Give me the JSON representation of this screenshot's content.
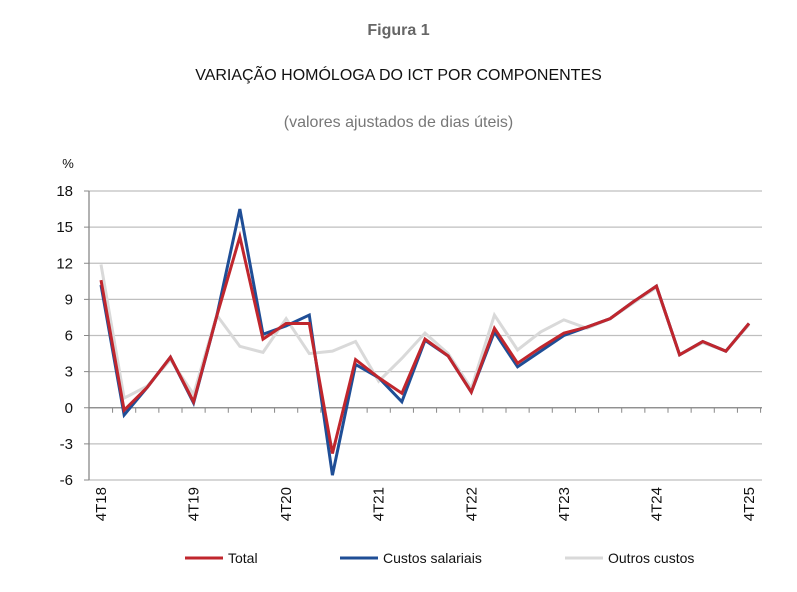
{
  "figure_label": "Figura 1",
  "chart_data": {
    "type": "line",
    "title": "VARIAÇÃO HOMÓLOGA DO ICT POR COMPONENTES",
    "subtitle": "(valores ajustados de dias úteis)",
    "ylabel": "%",
    "xlabel": "",
    "ylim": [
      -6,
      18
    ],
    "yticks": [
      18,
      15,
      12,
      9,
      6,
      3,
      0,
      -3,
      -6
    ],
    "grid": true,
    "legend_position": "bottom",
    "x": [
      "4T18",
      "1T19",
      "2T19",
      "3T19",
      "4T19",
      "1T20",
      "2T20",
      "3T20",
      "4T20",
      "1T21",
      "2T21",
      "3T21",
      "4T21",
      "1T22",
      "2T22",
      "3T22",
      "4T22",
      "1T23",
      "2T23",
      "3T23",
      "4T23",
      "1T24",
      "2T24",
      "3T24",
      "4T24",
      "1T25",
      "2T25",
      "3T25",
      "4T25"
    ],
    "xtick_labels": [
      "4T18",
      "4T19",
      "4T20",
      "4T21",
      "4T22",
      "4T23",
      "4T24",
      "4T25"
    ],
    "series": [
      {
        "name": "Total",
        "color": "#C0262D",
        "values": [
          10.6,
          -0.2,
          1.7,
          4.2,
          0.5,
          7.6,
          14.2,
          5.7,
          7.0,
          7.0,
          -3.8,
          4.0,
          2.5,
          1.2,
          5.7,
          4.3,
          1.3,
          6.6,
          3.7,
          5.0,
          6.2,
          6.7,
          7.4,
          8.8,
          10.1,
          4.4,
          5.5,
          4.7,
          7.0
        ]
      },
      {
        "name": "Custos salariais",
        "color": "#1F4E96",
        "values": [
          10.2,
          -0.6,
          1.7,
          4.2,
          0.4,
          7.6,
          16.5,
          6.1,
          6.8,
          7.7,
          -5.6,
          3.6,
          2.5,
          0.5,
          5.6,
          4.3,
          1.3,
          6.3,
          3.4,
          4.7,
          6.0,
          6.7,
          7.4,
          8.8,
          10.1,
          4.4,
          5.5,
          4.7,
          7.0
        ]
      },
      {
        "name": "Outros custos",
        "color": "#D9D9D9",
        "values": [
          11.9,
          0.8,
          1.8,
          4.0,
          1.1,
          7.7,
          5.1,
          4.6,
          7.4,
          4.5,
          4.7,
          5.5,
          2.2,
          4.1,
          6.2,
          4.5,
          1.6,
          7.7,
          4.8,
          6.3,
          7.3,
          6.6,
          7.4,
          8.7,
          10.0,
          4.4,
          5.4,
          4.7,
          6.9
        ]
      }
    ]
  }
}
